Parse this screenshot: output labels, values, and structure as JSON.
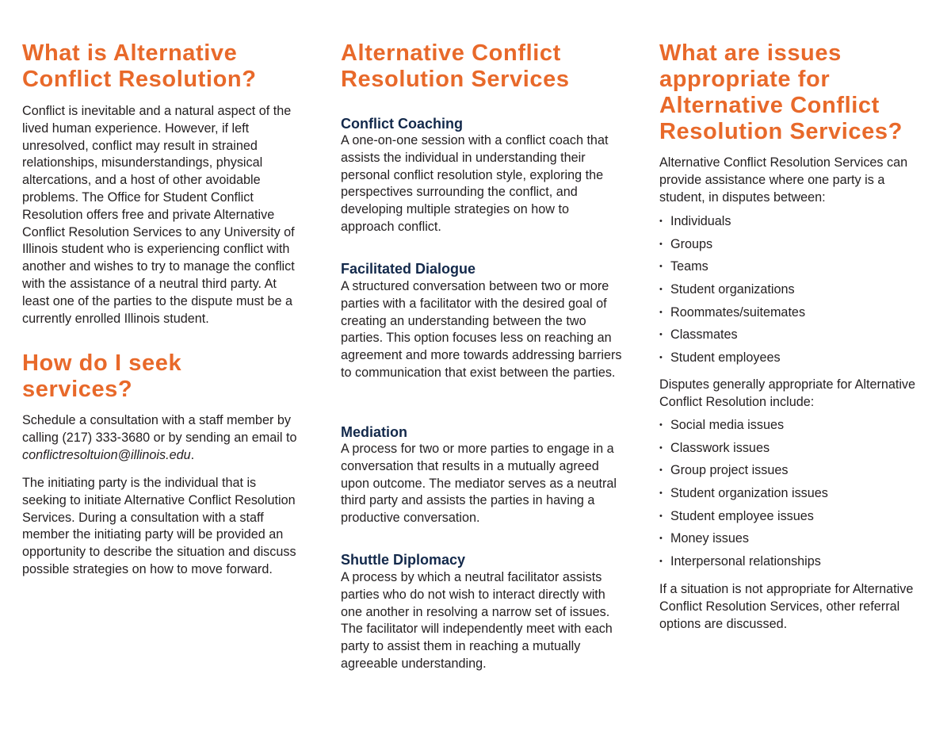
{
  "col1": {
    "heading1": [
      "What is Alternative",
      "Conflict Resolution?"
    ],
    "para1": "Conflict is inevitable and a natural aspect of the lived human experience. However, if left unresolved, conflict may result in strained relationships, misunderstandings, physical altercations, and a host of other avoidable problems. The Office for Student Conflict Resolution offers free and private Alternative Conflict Resolution Services to any University of Illinois student who is experiencing conflict with another and wishes to try to manage the conflict with the assistance of a neutral third party. At least one of the parties to the dispute must be a currently enrolled Illinois student.",
    "heading2": [
      "How do I seek",
      "services?"
    ],
    "para2_prefix": "Schedule a consultation with a staff member by calling (217) 333-3680 or by sending an email to ",
    "para2_email": "conflictresoltuion@illinois.edu",
    "para2_suffix": ".",
    "para3": "The initiating party is the individual that is seeking to initiate Alternative Conflict Resolution Services. During a consultation with a staff member the initiating party will be provided an opportunity to describe the situation and discuss possible strategies on how to move forward."
  },
  "col2": {
    "heading": [
      "Alternative Conflict",
      "Resolution Services"
    ],
    "services": [
      {
        "title": "Conflict Coaching",
        "text": "A one-on-one session with a conflict coach that assists the individual in understanding their personal conflict resolution style, exploring the perspectives surrounding the conflict, and developing multiple strategies on how to approach conflict."
      },
      {
        "title": "Facilitated Dialogue",
        "text": "A structured conversation between two or more parties with a facilitator with the desired goal of creating an understanding between the two parties. This option focuses less on reaching an agreement and more towards addressing barriers to communication that exist between the parties."
      },
      {
        "title": "Mediation",
        "text": "A process for two or more parties to engage in a conversation that results in a mutually agreed upon outcome. The mediator serves as a neutral third party and assists the parties in having a productive conversation."
      },
      {
        "title": "Shuttle Diplomacy",
        "text": "A process by which a neutral facilitator assists parties who do not wish to interact directly with one another in resolving a narrow set of issues. The facilitator will independently meet with each party to assist them in reaching a mutually agreeable understanding."
      }
    ]
  },
  "col3": {
    "heading": [
      "What are issues",
      "appropriate for",
      "Alternative Conflict",
      "Resolution Services?"
    ],
    "intro1": "Alternative Conflict Resolution Services can provide assistance where one party is a student, in disputes between:",
    "list1": [
      "Individuals",
      "Groups",
      "Teams",
      "Student organizations",
      "Roommates/suitemates",
      "Classmates",
      "Student employees"
    ],
    "intro2": "Disputes generally appropriate for Alternative Conflict Resolution include:",
    "list2": [
      "Social media issues",
      "Classwork issues",
      "Group project issues",
      "Student organization issues",
      "Student employee issues",
      "Money issues",
      "Interpersonal relationships"
    ],
    "closing": "If a situation is not appropriate for Alternative Conflict Resolution Services, other referral options are discussed."
  }
}
